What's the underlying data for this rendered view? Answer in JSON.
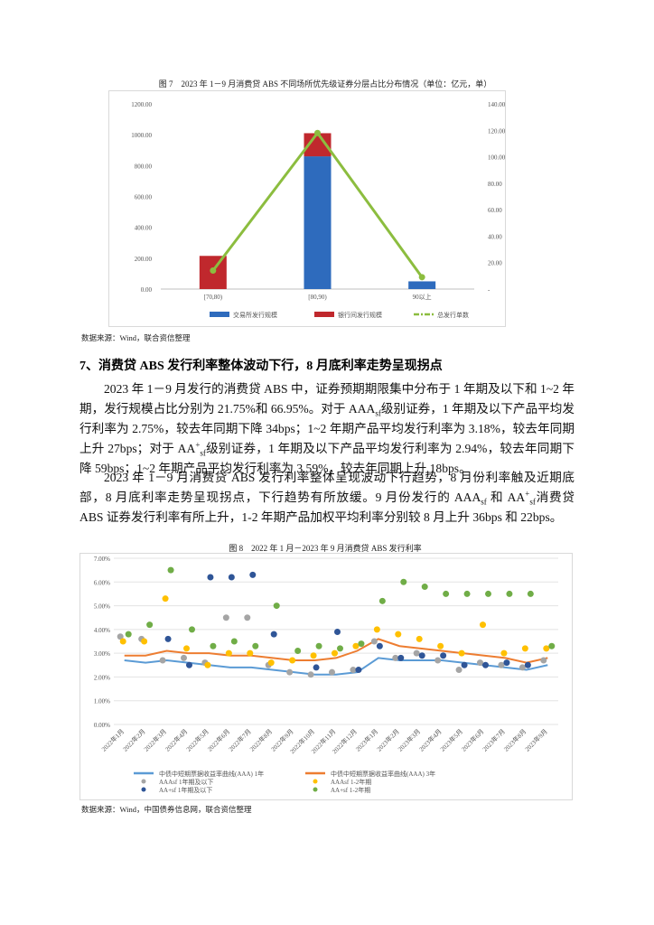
{
  "figures": [
    {
      "type": "bar",
      "caption": "图 7　2023 年 1－9 月消费贷 ABS 不同场所优先级证券分层占比分布情况（单位：亿元，单）",
      "categories": [
        "[70,80)",
        "[80,90)",
        "90以上"
      ],
      "series": [
        {
          "name": "交易所发行规模",
          "color": "#2e6bbd",
          "values": [
            0,
            860,
            50
          ]
        },
        {
          "name": "银行间发行规模",
          "color": "#c0282d",
          "values": [
            215,
            150,
            0
          ]
        },
        {
          "name": "总发行单数",
          "color": "#8cbd3f",
          "values": [
            14,
            118,
            9
          ],
          "axis": "y2",
          "type": "line"
        }
      ],
      "ylim": [
        0,
        1200
      ],
      "yticks": [
        {
          "value": 0,
          "label": "0.00"
        },
        {
          "value": 200,
          "label": "200.00"
        },
        {
          "value": 400,
          "label": "400.00"
        },
        {
          "value": 600,
          "label": "600.00"
        },
        {
          "value": 800,
          "label": "800.00"
        },
        {
          "value": 1000,
          "label": "1000.00"
        },
        {
          "value": 1200,
          "label": "1200.00"
        }
      ],
      "y2lim": [
        0,
        140
      ],
      "y2ticks": [
        {
          "value": 0,
          "label": "-"
        },
        {
          "value": 20,
          "label": "20.00"
        },
        {
          "value": 40,
          "label": "40.00"
        },
        {
          "value": 60,
          "label": "60.00"
        },
        {
          "value": 80,
          "label": "80.00"
        },
        {
          "value": 100,
          "label": "100.00"
        },
        {
          "value": 120,
          "label": "120.00"
        },
        {
          "value": 140,
          "label": "140.00"
        }
      ],
      "source": "数据来源：Wind，联合资信整理"
    },
    {
      "type": "line",
      "caption": "图 8　2022 年 1 月－2023 年 9 月消费贷 ABS 发行利率",
      "categories": [
        "2022年1月",
        "2022年2月",
        "2022年3月",
        "2022年4月",
        "2022年5月",
        "2022年6月",
        "2022年7月",
        "2022年8月",
        "2022年9月",
        "2022年10月",
        "2022年11月",
        "2022年12月",
        "2023年1月",
        "2023年2月",
        "2023年3月",
        "2023年4月",
        "2023年5月",
        "2023年6月",
        "2023年7月",
        "2023年8月",
        "2023年9月"
      ],
      "series": [
        {
          "name": "中债中短期票据收益率曲线(AAA) 1年",
          "color": "#5b9bd5",
          "type": "line",
          "values": [
            2.7,
            2.6,
            2.7,
            2.6,
            2.5,
            2.4,
            2.4,
            2.3,
            2.2,
            2.1,
            2.1,
            2.2,
            2.8,
            2.7,
            2.7,
            2.7,
            2.6,
            2.5,
            2.4,
            2.3,
            2.5
          ]
        },
        {
          "name": "中债中短期票据收益率曲线(AAA) 3年",
          "color": "#ed7d31",
          "type": "line",
          "values": [
            2.9,
            2.9,
            3.1,
            3.0,
            3.0,
            2.9,
            2.9,
            2.8,
            2.7,
            2.7,
            2.8,
            3.1,
            3.6,
            3.3,
            3.2,
            3.1,
            3.0,
            2.9,
            2.8,
            2.6,
            2.8
          ]
        },
        {
          "name": "AAAsf 1年期及以下",
          "color": "#a5a5a5",
          "type": "scatter",
          "values": [
            3.7,
            3.6,
            2.7,
            2.8,
            2.6,
            4.5,
            4.5,
            2.5,
            2.2,
            2.1,
            2.2,
            2.3,
            3.5,
            2.8,
            3.0,
            2.7,
            2.3,
            2.6,
            2.5,
            2.4,
            2.7
          ]
        },
        {
          "name": "AAAsf 1-2年期",
          "color": "#ffc000",
          "type": "scatter",
          "values": [
            3.5,
            3.5,
            5.3,
            3.2,
            2.5,
            3.0,
            3.0,
            2.6,
            2.7,
            2.9,
            3.0,
            3.3,
            4.0,
            3.8,
            3.6,
            3.3,
            3.0,
            4.2,
            3.0,
            3.2,
            3.2
          ]
        },
        {
          "name": "AA+sf 1年期及以下",
          "color": "#2f5597",
          "type": "scatter",
          "values": [
            null,
            null,
            3.6,
            2.5,
            6.2,
            6.2,
            6.3,
            3.8,
            null,
            2.4,
            3.9,
            2.3,
            3.3,
            2.8,
            2.9,
            2.9,
            2.5,
            2.5,
            2.6,
            2.5,
            null
          ]
        },
        {
          "name": "AA+sf 1-2年期",
          "color": "#70ad47",
          "type": "scatter",
          "values": [
            3.8,
            4.2,
            6.5,
            4.0,
            3.3,
            3.5,
            3.3,
            5.0,
            3.1,
            3.3,
            3.2,
            3.4,
            5.2,
            6.0,
            5.8,
            5.5,
            5.5,
            5.5,
            5.5,
            5.5,
            3.3
          ]
        }
      ],
      "ylim": [
        0,
        7
      ],
      "yticks": [
        {
          "value": 0,
          "label": "0.00%"
        },
        {
          "value": 1,
          "label": "1.00%"
        },
        {
          "value": 2,
          "label": "2.00%"
        },
        {
          "value": 3,
          "label": "3.00%"
        },
        {
          "value": 4,
          "label": "4.00%"
        },
        {
          "value": 5,
          "label": "5.00%"
        },
        {
          "value": 6,
          "label": "6.00%"
        },
        {
          "value": 7,
          "label": "7.00%"
        }
      ],
      "grid": true,
      "source": "数据来源：Wind，中国债券信息网，联合资信整理"
    }
  ],
  "heading": "7、消费贷 ABS 发行利率整体波动下行，8 月底利率走势呈现拐点",
  "paragraphs": [
    [
      "2023 年 1－9 月发行的消费贷 ABS 中，证券预期期限集中分布于 1 年期及以下和 1~2 年期，发行规模占比分别为 21.75%和 66.95%。对于 AAA",
      "sf",
      "级别证券，1 年期及以下产品平均发行利率为 2.75%，较去年同期下降 34bps；1~2 年期产品平均发行利率为 3.18%，较去年同期上升 27bps；对于 AA",
      "+",
      "sf",
      "级别证券，1 年期及以下产品平均发行利率为 2.94%，较去年同期下降 59bps；1~2 年期产品平均发行利率为 3.59%，较去年同期上升 18bps。"
    ],
    [
      "2023 年 1－9 月消费贷 ABS 发行利率整体呈现波动下行趋势，8 月份利率触及近期底部，8 月底利率走势呈现拐点，下行趋势有所放缓。9 月份发行的 AAA",
      "sf",
      " 和 AA",
      "+",
      "sf",
      "消费贷 ABS 证券发行利率有所上升，1-2 年期产品加权平均利率分别较 8 月上升 36bps 和 22bps。"
    ]
  ]
}
